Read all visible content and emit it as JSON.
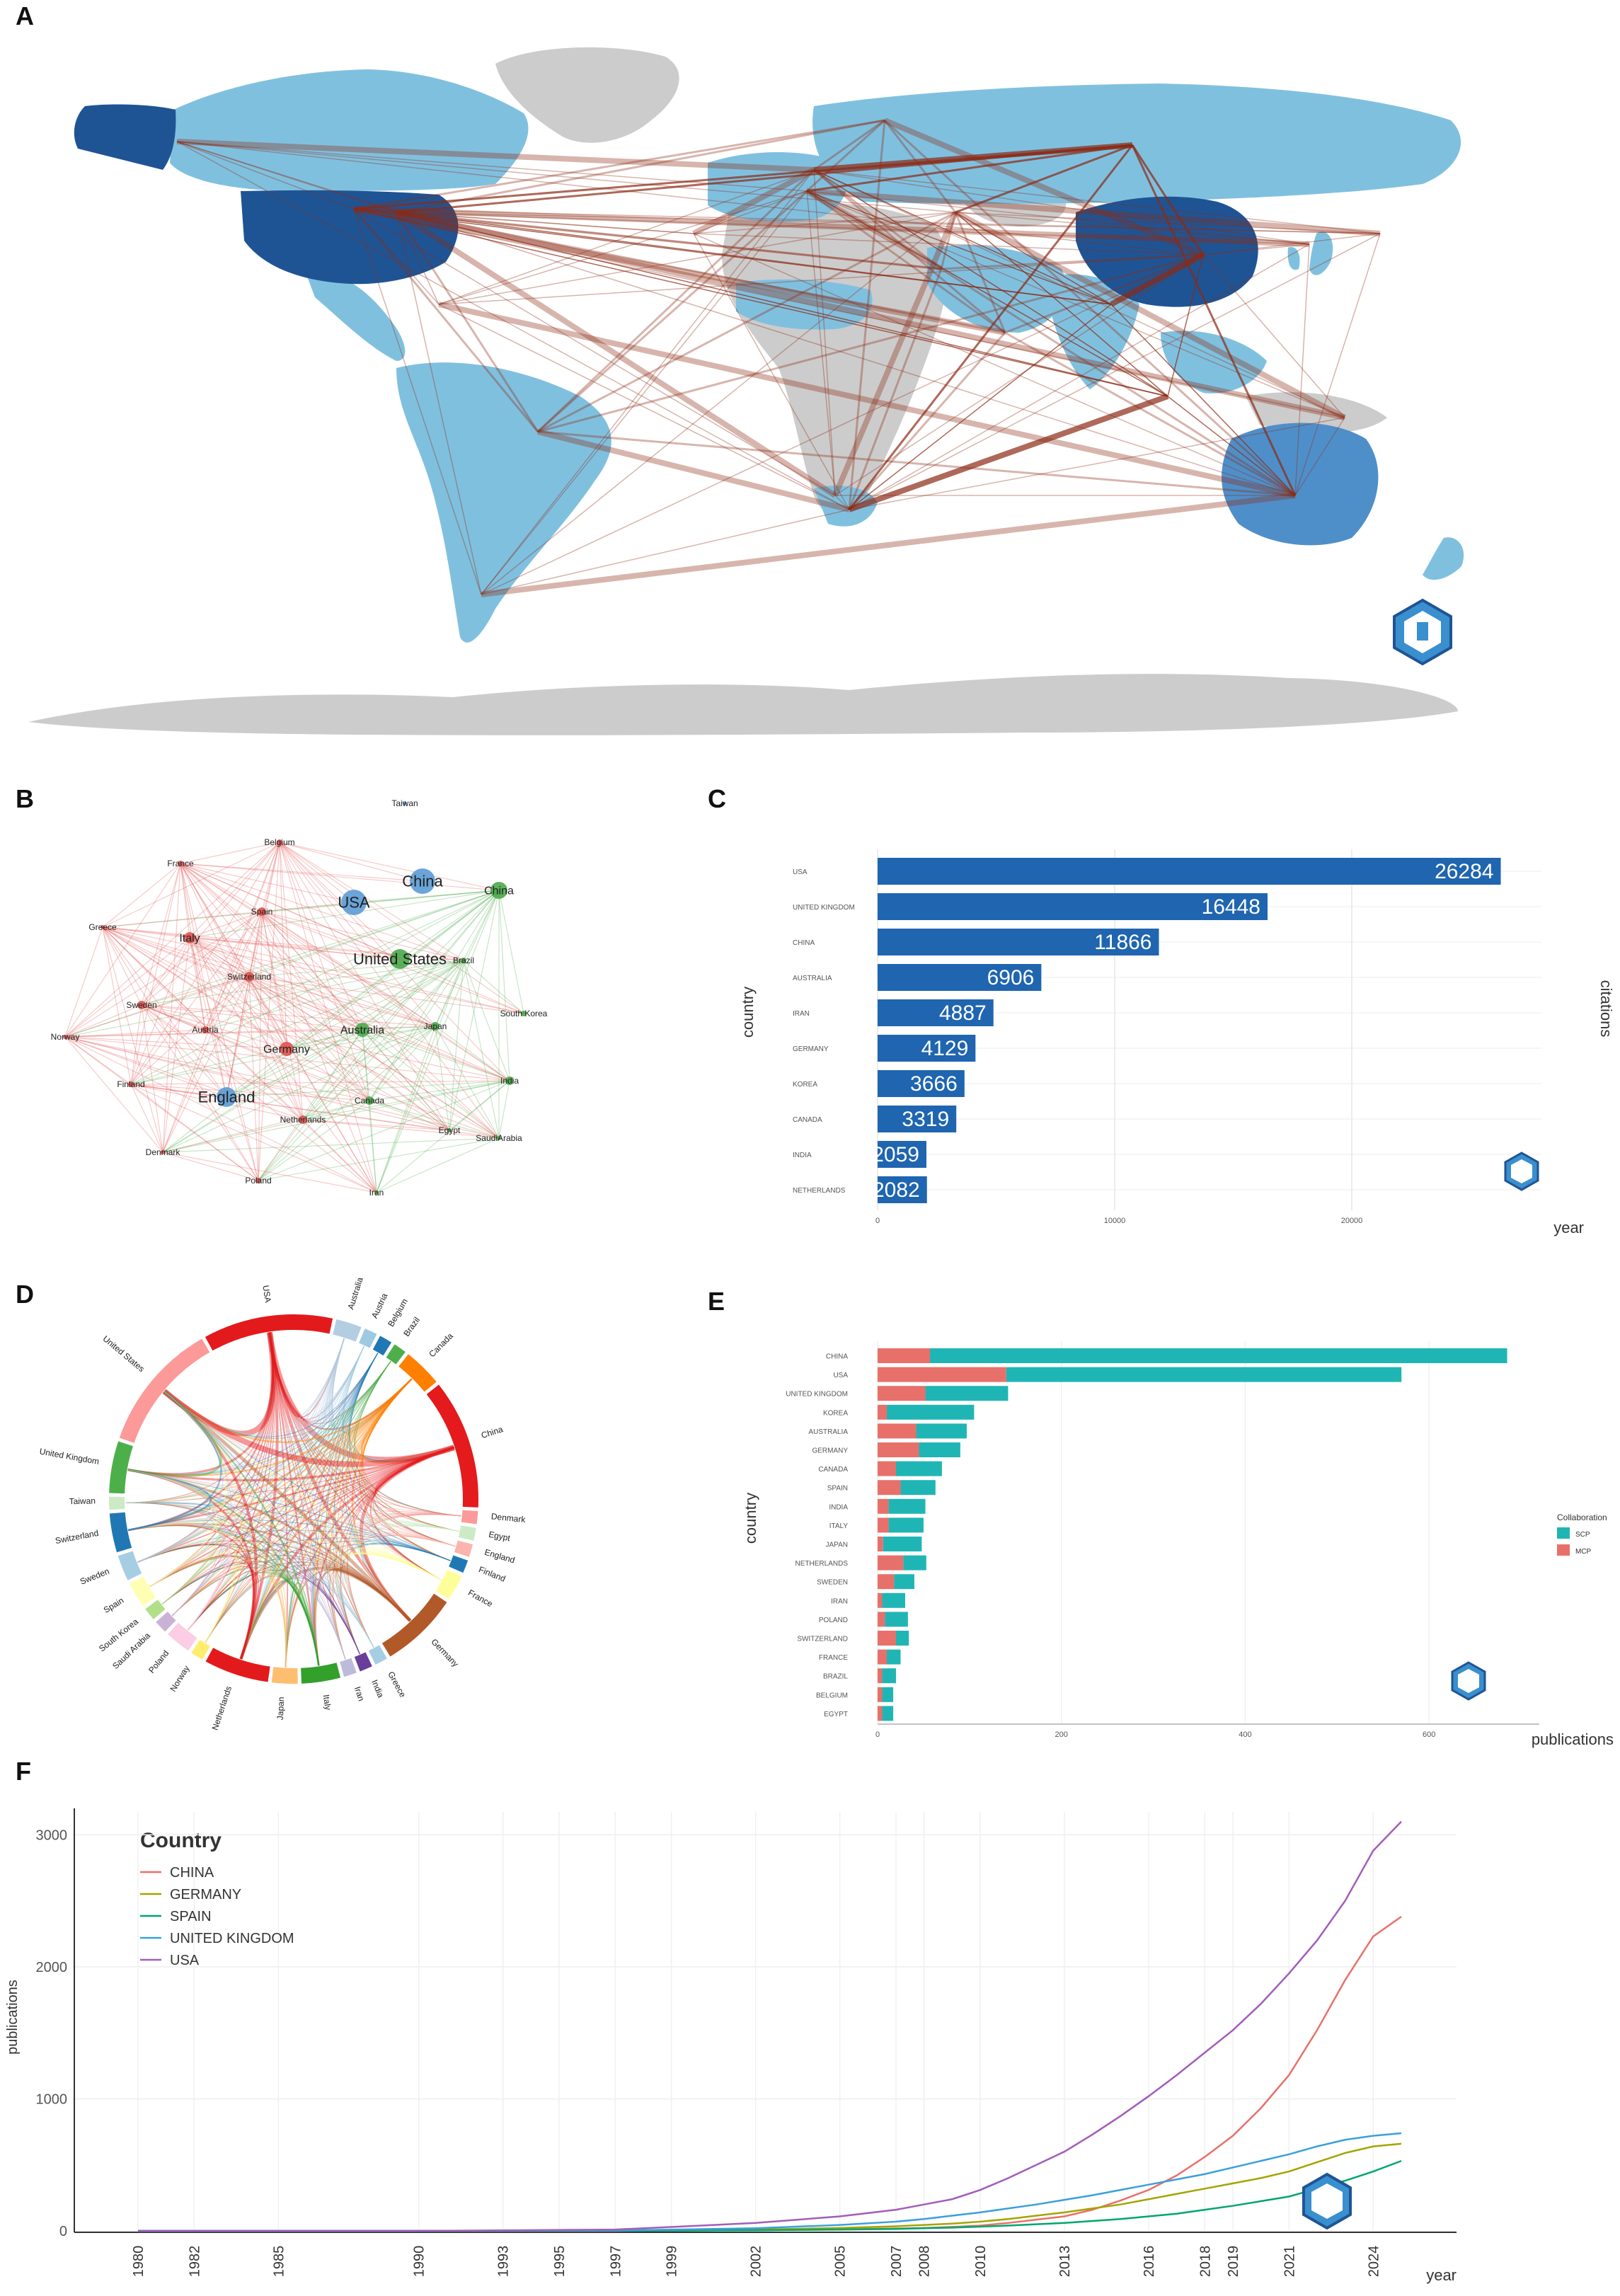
{
  "panels": {
    "A": "A",
    "B": "B",
    "C": "C",
    "D": "D",
    "E": "E",
    "F": "F"
  },
  "colors": {
    "dark_blue": "#1f5494",
    "mid_blue": "#4f8fc9",
    "light_blue": "#80c0df",
    "no_data": "#cccccc",
    "link": "#8b2a14",
    "bar": "#1f65b0",
    "scp": "#20b5b5",
    "mcp": "#e8706a"
  },
  "icons": {
    "logo": "bibliometrix-icon"
  },
  "network_B": {
    "nodes": [
      {
        "label": "Taiwan",
        "cluster": "blue"
      },
      {
        "label": "Belgium",
        "cluster": "red"
      },
      {
        "label": "France",
        "cluster": "red"
      },
      {
        "label": "China",
        "cluster": "blue"
      },
      {
        "label": "China",
        "cluster": "green"
      },
      {
        "label": "Spain",
        "cluster": "red"
      },
      {
        "label": "USA",
        "cluster": "blue"
      },
      {
        "label": "Greece",
        "cluster": "red"
      },
      {
        "label": "Italy",
        "cluster": "red"
      },
      {
        "label": "United States",
        "cluster": "green"
      },
      {
        "label": "Brazil",
        "cluster": "green"
      },
      {
        "label": "Switzerland",
        "cluster": "red"
      },
      {
        "label": "South Korea",
        "cluster": "green"
      },
      {
        "label": "Sweden",
        "cluster": "red"
      },
      {
        "label": "Norway",
        "cluster": "red"
      },
      {
        "label": "Austria",
        "cluster": "red"
      },
      {
        "label": "Australia",
        "cluster": "green"
      },
      {
        "label": "Japan",
        "cluster": "green"
      },
      {
        "label": "Germany",
        "cluster": "red"
      },
      {
        "label": "Finland",
        "cluster": "red"
      },
      {
        "label": "India",
        "cluster": "green"
      },
      {
        "label": "England",
        "cluster": "blue"
      },
      {
        "label": "Canada",
        "cluster": "green"
      },
      {
        "label": "Netherlands",
        "cluster": "red"
      },
      {
        "label": "Egypt",
        "cluster": "green"
      },
      {
        "label": "SaudiArabia",
        "cluster": "green"
      },
      {
        "label": "Denmark",
        "cluster": "red"
      },
      {
        "label": "Poland",
        "cluster": "red"
      },
      {
        "label": "Iran",
        "cluster": "green"
      }
    ]
  },
  "chord_D": {
    "labels": [
      "USA",
      "Australia",
      "Austria",
      "Belgium",
      "Brazil",
      "Canada",
      "China",
      "Denmark",
      "Egypt",
      "England",
      "Finland",
      "France",
      "Germany",
      "Greece",
      "India",
      "Iran",
      "Italy",
      "Japan",
      "Netherlands",
      "Norway",
      "Poland",
      "Saudi Arabia",
      "South Korea",
      "Spain",
      "Sweden",
      "Switzerland",
      "Taiwan",
      "United Kingdom",
      "United States"
    ]
  },
  "chart_data": [
    {
      "panel": "C",
      "type": "bar",
      "orientation": "horizontal",
      "categories": [
        "USA",
        "UNITED KINGDOM",
        "CHINA",
        "AUSTRALIA",
        "IRAN",
        "GERMANY",
        "KOREA",
        "CANADA",
        "INDIA",
        "NETHERLANDS"
      ],
      "values": [
        26284,
        16448,
        11866,
        6906,
        4887,
        4129,
        3666,
        3319,
        2059,
        2082
      ],
      "xlabel": "year",
      "ylabel": "country",
      "right_label": "citations",
      "xticks": [
        "0",
        "10000",
        "20000"
      ],
      "xlim": [
        0,
        28000
      ]
    },
    {
      "panel": "E",
      "type": "bar",
      "orientation": "horizontal",
      "stacked": true,
      "categories": [
        "CHINA",
        "USA",
        "UNITED KINGDOM",
        "KOREA",
        "AUSTRALIA",
        "GERMANY",
        "CANADA",
        "SPAIN",
        "INDIA",
        "ITALY",
        "JAPAN",
        "NETHERLANDS",
        "SWEDEN",
        "IRAN",
        "POLAND",
        "SWITZERLAND",
        "FRANCE",
        "BRAZIL",
        "BELGIUM",
        "EGYPT"
      ],
      "series": [
        {
          "name": "SCP",
          "values": [
            628,
            430,
            90,
            95,
            55,
            45,
            50,
            38,
            40,
            38,
            42,
            25,
            22,
            25,
            25,
            14,
            15,
            15,
            12,
            12
          ]
        },
        {
          "name": "MCP",
          "values": [
            57,
            140,
            52,
            10,
            42,
            45,
            20,
            25,
            12,
            12,
            6,
            28,
            18,
            5,
            8,
            20,
            10,
            5,
            5,
            5
          ]
        }
      ],
      "xlabel": "publications",
      "ylabel": "country",
      "legend_title": "Collaboration",
      "legend_position": "right",
      "xticks": [
        "0",
        "200",
        "400",
        "600"
      ],
      "xlim": [
        0,
        720
      ]
    },
    {
      "panel": "F",
      "type": "line",
      "legend_title": "Country",
      "legend_position": "top-left",
      "xlabel": "year",
      "ylabel": "publications",
      "xticks": [
        "1980",
        "1982",
        "1985",
        "1990",
        "1993",
        "1995",
        "1997",
        "1999",
        "2002",
        "2005",
        "2007",
        "2008",
        "2010",
        "2013",
        "2016",
        "2018",
        "2019",
        "2021",
        "2024"
      ],
      "yticks": [
        "0",
        "1000",
        "2000",
        "3000"
      ],
      "ylim": [
        0,
        3200
      ],
      "xlim": [
        1980,
        2025
      ],
      "x": [
        1980,
        1990,
        1997,
        2002,
        2005,
        2007,
        2008,
        2009,
        2010,
        2011,
        2012,
        2013,
        2014,
        2015,
        2016,
        2017,
        2018,
        2019,
        2020,
        2021,
        2022,
        2023,
        2024,
        2025
      ],
      "series": [
        {
          "name": "CHINA",
          "color": "#e8706a",
          "values": [
            0,
            0,
            0,
            5,
            12,
            18,
            22,
            30,
            40,
            60,
            85,
            110,
            160,
            230,
            310,
            420,
            560,
            720,
            930,
            1180,
            1520,
            1900,
            2230,
            2380
          ]
        },
        {
          "name": "GERMANY",
          "color": "#a3a500",
          "values": [
            0,
            0,
            2,
            10,
            22,
            35,
            45,
            55,
            70,
            90,
            115,
            140,
            170,
            200,
            240,
            280,
            320,
            360,
            400,
            450,
            520,
            590,
            640,
            660
          ]
        },
        {
          "name": "SPAIN",
          "color": "#00a66e",
          "values": [
            0,
            0,
            1,
            5,
            10,
            15,
            20,
            25,
            32,
            40,
            50,
            60,
            75,
            90,
            110,
            130,
            160,
            190,
            225,
            260,
            320,
            380,
            450,
            530
          ]
        },
        {
          "name": "UNITED KINGDOM",
          "color": "#3aa0dc",
          "values": [
            0,
            0,
            3,
            20,
            45,
            70,
            90,
            115,
            140,
            170,
            200,
            235,
            270,
            310,
            350,
            390,
            430,
            480,
            530,
            580,
            640,
            690,
            720,
            740
          ]
        },
        {
          "name": "USA",
          "color": "#a25dba",
          "values": [
            0,
            0,
            10,
            60,
            110,
            160,
            200,
            240,
            310,
            400,
            500,
            600,
            730,
            870,
            1020,
            1180,
            1350,
            1520,
            1720,
            1950,
            2200,
            2500,
            2880,
            3100
          ]
        }
      ]
    }
  ]
}
